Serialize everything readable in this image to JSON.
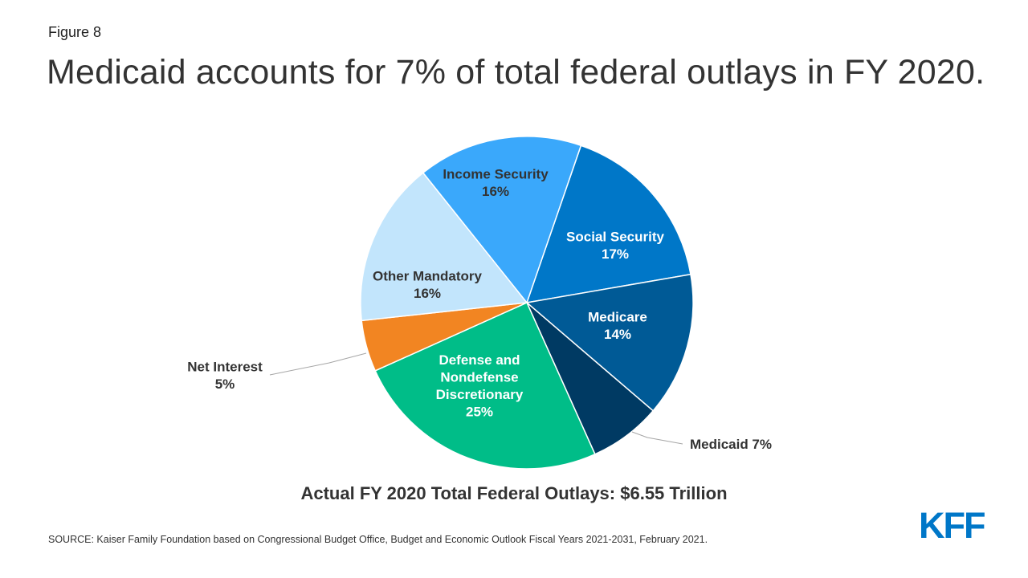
{
  "figure_label": "Figure 8",
  "title": "Medicaid accounts for 7% of total federal outlays in FY 2020.",
  "total_text": "Actual FY 2020 Total Federal Outlays: $6.55 Trillion",
  "source": "SOURCE:  Kaiser Family Foundation based on Congressional Budget Office, Budget and Economic Outlook Fiscal Years 2021-2031, February 2021.",
  "logo": "KFF",
  "chart_data": {
    "type": "pie",
    "title": "",
    "start_angle_deg": 19,
    "slices": [
      {
        "name": "Social Security",
        "label_lines": [
          "Social Security",
          "17%"
        ],
        "value": 17,
        "color": "#0077c8",
        "label_color": "#ffffff"
      },
      {
        "name": "Medicare",
        "label_lines": [
          "Medicare",
          "14%"
        ],
        "value": 14,
        "color": "#005a96",
        "label_color": "#ffffff"
      },
      {
        "name": "Medicaid",
        "label_lines": [
          "Medicaid 7%"
        ],
        "value": 7,
        "color": "#003a63",
        "label_color": "#333333",
        "leader": true
      },
      {
        "name": "Defense and Nondefense Discretionary",
        "label_lines": [
          "Defense and",
          "Nondefense",
          "Discretionary",
          "25%"
        ],
        "value": 25,
        "color": "#00bd88",
        "label_color": "#ffffff"
      },
      {
        "name": "Net Interest",
        "label_lines": [
          "Net Interest",
          "5%"
        ],
        "value": 5,
        "color": "#f28522",
        "label_color": "#333333",
        "leader": true
      },
      {
        "name": "Other Mandatory",
        "label_lines": [
          "Other Mandatory",
          "16%"
        ],
        "value": 16,
        "color": "#c2e5fc",
        "label_color": "#333333"
      },
      {
        "name": "Income Security",
        "label_lines": [
          "Income Security",
          "16%"
        ],
        "value": 16,
        "color": "#3aa8fb",
        "label_color": "#333333"
      }
    ]
  }
}
